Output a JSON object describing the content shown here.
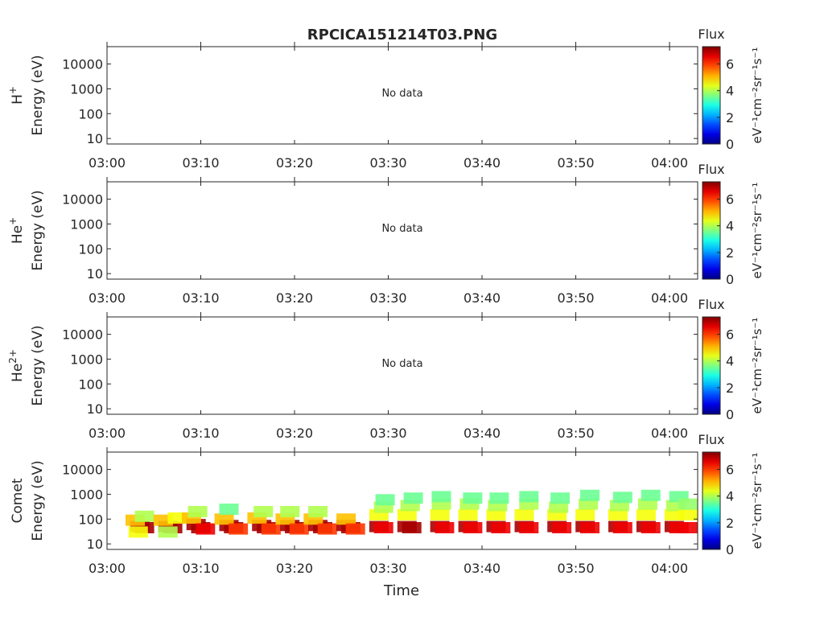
{
  "title": "RPCICA151214T03.PNG",
  "time_ticks": [
    "03:00",
    "03:10",
    "03:20",
    "03:30",
    "03:40",
    "03:50",
    "04:00"
  ],
  "energy_ticks": [
    "10",
    "100",
    "1000",
    "10000"
  ],
  "xlabel": "Time",
  "colorbar": {
    "label": "Flux",
    "units": "eV⁻¹cm⁻²sr⁻¹s⁻¹",
    "ticks": [
      "0",
      "2",
      "4",
      "6"
    ],
    "range": [
      0,
      7.3
    ],
    "colormap": "jet"
  },
  "chart_data": [
    {
      "type": "heatmap",
      "species": "H",
      "species_sup": "+",
      "ylabel": "Energy (eV)",
      "yscale": "log",
      "ylim": [
        6,
        50000
      ],
      "xlim": [
        "03:00",
        "04:03"
      ],
      "message": "No data",
      "cells": []
    },
    {
      "type": "heatmap",
      "species": "He",
      "species_sup": "+",
      "ylabel": "Energy (eV)",
      "yscale": "log",
      "ylim": [
        6,
        50000
      ],
      "xlim": [
        "03:00",
        "04:03"
      ],
      "message": "No data",
      "cells": []
    },
    {
      "type": "heatmap",
      "species": "He",
      "species_sup": "2+",
      "ylabel": "Energy (eV)",
      "yscale": "log",
      "ylim": [
        6,
        50000
      ],
      "xlim": [
        "03:00",
        "04:03"
      ],
      "message": "No data",
      "cells": []
    },
    {
      "type": "heatmap",
      "species": "Comet",
      "species_sup": "",
      "ylabel": "Energy (eV)",
      "yscale": "log",
      "ylim": [
        6,
        50000
      ],
      "xlim": [
        "03:00",
        "04:03"
      ],
      "message": "",
      "cells": [
        [
          "03:03:30",
          50,
          7
        ],
        [
          "03:04:00",
          45,
          7
        ],
        [
          "03:03:00",
          90,
          5
        ],
        [
          "03:04:00",
          130,
          4
        ],
        [
          "03:03:20",
          30,
          4.5
        ],
        [
          "03:06:30",
          50,
          7
        ],
        [
          "03:07:00",
          45,
          7
        ],
        [
          "03:06:00",
          90,
          5
        ],
        [
          "03:07:30",
          110,
          4.5
        ],
        [
          "03:06:30",
          30,
          4
        ],
        [
          "03:09:30",
          60,
          7
        ],
        [
          "03:10:00",
          45,
          7
        ],
        [
          "03:09:00",
          110,
          5
        ],
        [
          "03:09:40",
          200,
          4
        ],
        [
          "03:10:30",
          40,
          6.5
        ],
        [
          "03:13:00",
          55,
          7
        ],
        [
          "03:13:30",
          45,
          7
        ],
        [
          "03:12:30",
          100,
          5
        ],
        [
          "03:13:00",
          250,
          3.5
        ],
        [
          "03:14:00",
          40,
          6
        ],
        [
          "03:16:30",
          55,
          7
        ],
        [
          "03:17:00",
          45,
          7
        ],
        [
          "03:16:00",
          110,
          5
        ],
        [
          "03:16:40",
          200,
          4
        ],
        [
          "03:17:30",
          40,
          6
        ],
        [
          "03:19:30",
          55,
          7
        ],
        [
          "03:20:00",
          45,
          7
        ],
        [
          "03:19:00",
          100,
          5
        ],
        [
          "03:19:30",
          200,
          4
        ],
        [
          "03:20:30",
          40,
          6
        ],
        [
          "03:22:30",
          55,
          7
        ],
        [
          "03:23:00",
          45,
          7
        ],
        [
          "03:22:00",
          100,
          5
        ],
        [
          "03:22:30",
          200,
          4
        ],
        [
          "03:23:30",
          40,
          6
        ],
        [
          "03:25:30",
          55,
          7
        ],
        [
          "03:26:00",
          45,
          7
        ],
        [
          "03:25:30",
          100,
          5
        ],
        [
          "03:26:30",
          40,
          6
        ],
        [
          "03:29:00",
          50,
          7
        ],
        [
          "03:29:30",
          45,
          6.5
        ],
        [
          "03:29:00",
          150,
          4.5
        ],
        [
          "03:29:30",
          300,
          4
        ],
        [
          "03:29:40",
          600,
          3.5
        ],
        [
          "03:32:00",
          50,
          7
        ],
        [
          "03:32:30",
          45,
          7
        ],
        [
          "03:32:00",
          150,
          4.5
        ],
        [
          "03:32:20",
          350,
          4
        ],
        [
          "03:32:40",
          700,
          3.5
        ],
        [
          "03:35:30",
          50,
          7
        ],
        [
          "03:36:00",
          45,
          6.5
        ],
        [
          "03:35:30",
          150,
          4.5
        ],
        [
          "03:35:40",
          400,
          4
        ],
        [
          "03:35:40",
          800,
          3.5
        ],
        [
          "03:38:30",
          50,
          7
        ],
        [
          "03:39:00",
          45,
          6.5
        ],
        [
          "03:38:30",
          150,
          4.5
        ],
        [
          "03:38:40",
          400,
          4
        ],
        [
          "03:39:00",
          700,
          3.5
        ],
        [
          "03:41:30",
          50,
          7
        ],
        [
          "03:42:00",
          45,
          6.5
        ],
        [
          "03:41:30",
          150,
          4.5
        ],
        [
          "03:41:40",
          350,
          4
        ],
        [
          "03:41:50",
          700,
          3.5
        ],
        [
          "03:44:30",
          50,
          7
        ],
        [
          "03:45:00",
          45,
          6.5
        ],
        [
          "03:44:30",
          150,
          4.5
        ],
        [
          "03:45:00",
          400,
          4
        ],
        [
          "03:45:00",
          800,
          3.5
        ],
        [
          "03:48:00",
          50,
          7
        ],
        [
          "03:48:30",
          45,
          6.5
        ],
        [
          "03:48:00",
          150,
          4.5
        ],
        [
          "03:48:10",
          300,
          4
        ],
        [
          "03:48:20",
          700,
          3.5
        ],
        [
          "03:51:00",
          50,
          7
        ],
        [
          "03:51:30",
          45,
          6.5
        ],
        [
          "03:51:00",
          150,
          4.5
        ],
        [
          "03:51:20",
          400,
          4
        ],
        [
          "03:51:30",
          900,
          3.5
        ],
        [
          "03:54:30",
          50,
          7
        ],
        [
          "03:55:00",
          45,
          6.5
        ],
        [
          "03:54:30",
          150,
          4.5
        ],
        [
          "03:54:40",
          350,
          4
        ],
        [
          "03:55:00",
          750,
          3.5
        ],
        [
          "03:57:30",
          50,
          7
        ],
        [
          "03:58:00",
          45,
          6.5
        ],
        [
          "03:57:30",
          150,
          4.5
        ],
        [
          "03:57:40",
          400,
          4
        ],
        [
          "03:58:00",
          900,
          3.5
        ],
        [
          "04:00:30",
          50,
          7
        ],
        [
          "04:01:00",
          45,
          6.5
        ],
        [
          "04:00:30",
          150,
          4.5
        ],
        [
          "04:00:40",
          350,
          4
        ],
        [
          "04:01:00",
          800,
          3.5
        ],
        [
          "04:02:00",
          45,
          6.5
        ],
        [
          "04:02:00",
          150,
          4.5
        ],
        [
          "04:02:00",
          400,
          3.8
        ]
      ]
    }
  ]
}
